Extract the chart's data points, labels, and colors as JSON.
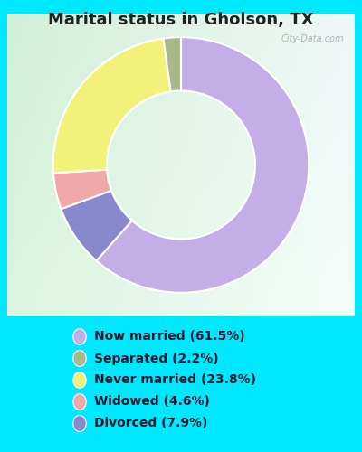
{
  "title": "Marital status in Gholson, TX",
  "slices": [
    {
      "label": "Now married (61.5%)",
      "value": 61.5,
      "color": "#c4aee8"
    },
    {
      "label": "Separated (2.2%)",
      "value": 2.2,
      "color": "#a8b88a"
    },
    {
      "label": "Never married (23.8%)",
      "value": 23.8,
      "color": "#f2f27a"
    },
    {
      "label": "Widowed (4.6%)",
      "value": 4.6,
      "color": "#f0a8a8"
    },
    {
      "label": "Divorced (7.9%)",
      "value": 7.9,
      "color": "#8888cc"
    }
  ],
  "bg_outer": "#00e8ff",
  "bg_panel_topleft": "#c8e8c8",
  "bg_panel_topright": "#e8f0f0",
  "bg_panel_bottomleft": "#d0eed0",
  "bg_panel_bottomright": "#f0f8f8",
  "watermark": "City-Data.com",
  "title_fontsize": 13,
  "legend_fontsize": 10,
  "title_color": "#222222",
  "legend_text_color": "#1a1a2e"
}
